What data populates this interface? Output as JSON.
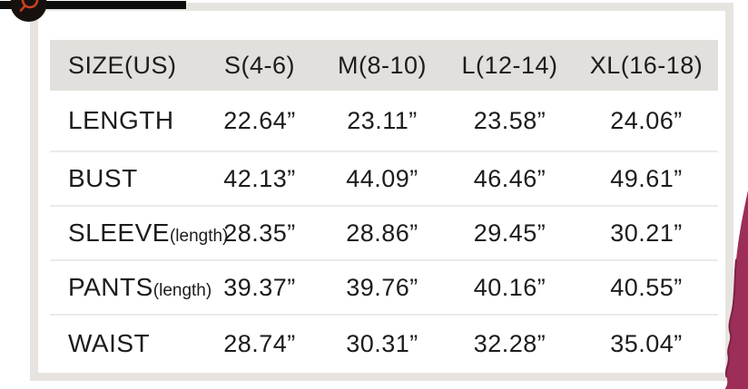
{
  "page": {
    "background": "#ffffff"
  },
  "top_bar": {
    "color": "#0d0d0d"
  },
  "zoom_badge": {
    "icon": "magnifier-icon",
    "circle_color": "#17110d",
    "glyph_color": "#c84020"
  },
  "card": {
    "border_color": "#e7e4e0",
    "header_background": "#e3dfdc",
    "row_separator_color": "#eceae7"
  },
  "fabric_photo": {
    "description": "maroon garment sleeve at right edge",
    "color": "#9c2e57",
    "shade_color": "#7c2145"
  },
  "size_chart": {
    "columns": [
      "SIZE(US)",
      "S(4-6)",
      "M(8-10)",
      "L(12-14)",
      "XL(16-18)"
    ],
    "rows": [
      {
        "label": "LENGTH",
        "sublabel": "",
        "values": [
          "22.64”",
          "23.11”",
          "23.58”",
          "24.06”"
        ]
      },
      {
        "label": "BUST",
        "sublabel": "",
        "values": [
          "42.13”",
          "44.09”",
          "46.46”",
          "49.61”"
        ]
      },
      {
        "label": "SLEEVE",
        "sublabel": "(length)",
        "values": [
          "28.35”",
          "28.86”",
          "29.45”",
          "30.21”"
        ]
      },
      {
        "label": "PANTS",
        "sublabel": "(length)",
        "values": [
          "39.37”",
          "39.76”",
          "40.16”",
          "40.55”"
        ]
      },
      {
        "label": "WAIST",
        "sublabel": "",
        "values": [
          "28.74”",
          "30.31”",
          "32.28”",
          "35.04”"
        ]
      }
    ]
  }
}
